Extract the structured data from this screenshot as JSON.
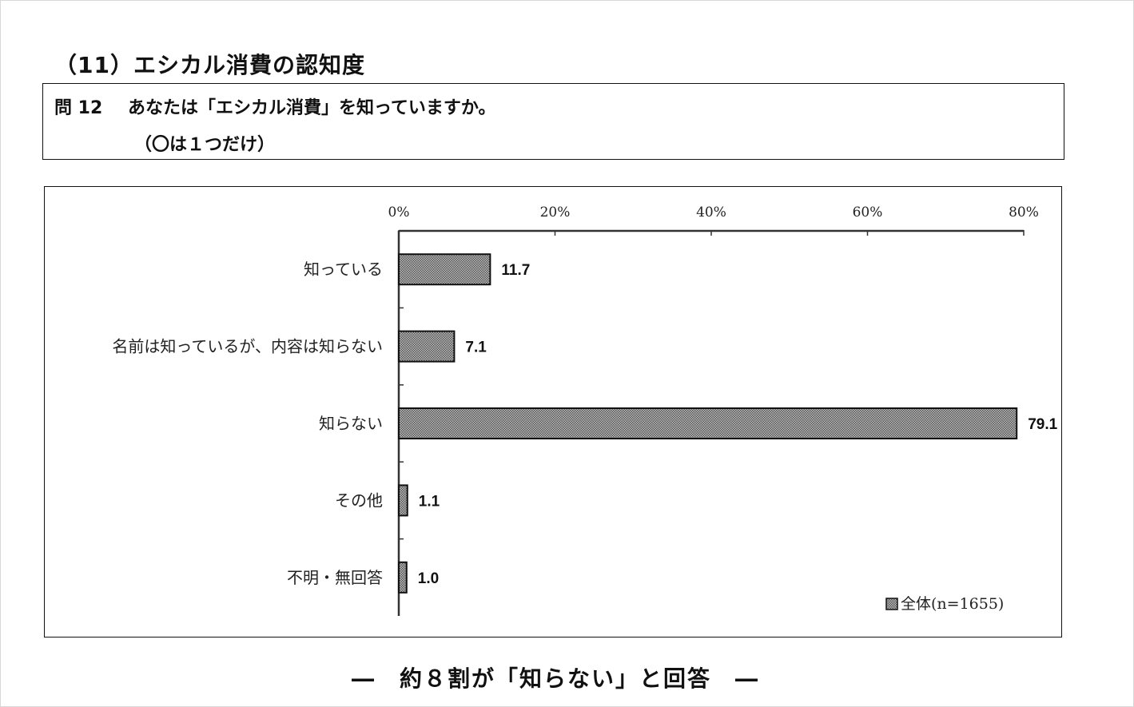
{
  "section": {
    "title": "（11）エシカル消費の認知度"
  },
  "question": {
    "number": "問 12",
    "text": "あなたは「エシカル消費」を知っていますか。",
    "note": "（〇は１つだけ）"
  },
  "chart_data": {
    "type": "bar",
    "orientation": "horizontal",
    "categories": [
      "知っている",
      "名前は知っているが、内容は知らない",
      "知らない",
      "その他",
      "不明・無回答"
    ],
    "series": [
      {
        "name": "全体(n=1655)",
        "values": [
          11.7,
          7.1,
          79.1,
          1.1,
          1.0
        ]
      }
    ],
    "data_labels": [
      "11.7",
      "7.1",
      "79.1",
      "1.1",
      "1.0"
    ],
    "xlim": [
      0,
      80
    ],
    "xticks": [
      0,
      20,
      40,
      60,
      80
    ],
    "xtick_labels": [
      "0%",
      "20%",
      "40%",
      "60%",
      "80%"
    ],
    "x_axis_position": "top",
    "legend": {
      "placement": "bottom-right",
      "label": "全体(n=1655)"
    },
    "grid": false,
    "bar_fill": "#9a9a9a",
    "bar_stroke": "#111111"
  },
  "conclusion": "―　約８割が「知らない」と回答　―"
}
